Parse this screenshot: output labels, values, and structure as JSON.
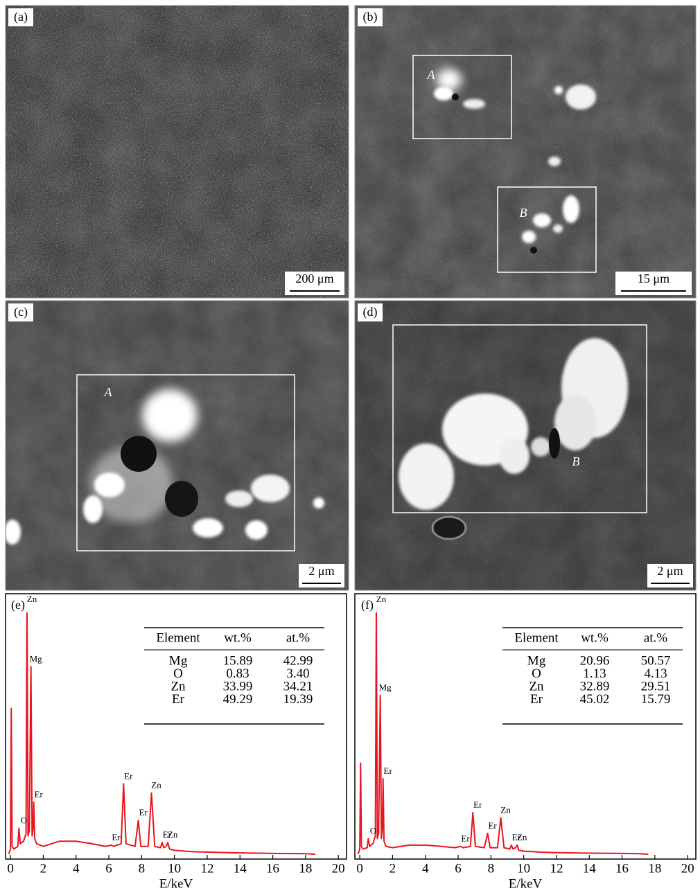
{
  "micrographs": [
    {
      "label": "(a)",
      "scale_bar": "200 μm"
    },
    {
      "label": "(b)",
      "scale_bar": "15 μm",
      "regions": [
        "A",
        "B"
      ]
    },
    {
      "label": "(c)",
      "scale_bar": "2 μm",
      "regions": [
        "A"
      ]
    },
    {
      "label": "(d)",
      "scale_bar": "2 μm",
      "regions": [
        "B"
      ]
    }
  ],
  "chart_data": [
    {
      "type": "line",
      "panel_label": "(e)",
      "xlabel": "E/keV",
      "color": "#e8141e",
      "xlim": [
        -0.3,
        20.5
      ],
      "ylim": [
        0,
        100
      ],
      "xticks": [
        0,
        2,
        4,
        6,
        8,
        10,
        12,
        14,
        16,
        18,
        20
      ],
      "x": [
        -0.1,
        0.0,
        0.05,
        0.1,
        0.2,
        0.45,
        0.52,
        0.6,
        0.8,
        0.95,
        1.01,
        1.07,
        1.15,
        1.25,
        1.32,
        1.38,
        1.42,
        1.48,
        1.6,
        2.0,
        3.0,
        4.0,
        5.0,
        5.8,
        6.15,
        6.3,
        6.75,
        6.9,
        7.05,
        7.6,
        7.8,
        7.95,
        8.4,
        8.6,
        8.8,
        9.15,
        9.25,
        9.35,
        9.5,
        9.6,
        9.7,
        10,
        11,
        12,
        14,
        16,
        18,
        18.6
      ],
      "values": [
        0,
        2,
        56,
        3,
        2,
        3,
        10,
        4,
        5,
        8,
        97,
        7,
        9,
        72,
        7,
        10,
        20,
        6,
        4,
        3,
        5,
        5,
        4,
        3,
        3.5,
        3,
        4,
        27,
        4,
        3,
        13,
        3,
        3,
        23.5,
        3,
        2.5,
        4.5,
        2.5,
        3,
        4.5,
        2,
        1.5,
        1,
        0.8,
        0.5,
        0.3,
        0.2,
        0
      ],
      "annotations": [
        {
          "text": "O",
          "x": 0.52
        },
        {
          "text": "Zn",
          "x": 1.01
        },
        {
          "text": "Mg",
          "x": 1.25
        },
        {
          "text": "Er",
          "x": 1.42
        },
        {
          "text": "Er",
          "x": 6.15
        },
        {
          "text": "Er",
          "x": 6.9
        },
        {
          "text": "Er",
          "x": 7.8
        },
        {
          "text": "Zn",
          "x": 8.6
        },
        {
          "text": "Er",
          "x": 9.25
        },
        {
          "text": "Zn",
          "x": 9.6
        }
      ],
      "table": {
        "columns": [
          "Element",
          "wt.%",
          "at.%"
        ],
        "rows": [
          [
            "Mg",
            "15.89",
            "42.99"
          ],
          [
            "O",
            "0.83",
            "3.40"
          ],
          [
            "Zn",
            "33.99",
            "34.21"
          ],
          [
            "Er",
            "49.29",
            "19.39"
          ]
        ]
      }
    },
    {
      "type": "line",
      "panel_label": "(f)",
      "xlabel": "E/keV",
      "color": "#e8141e",
      "xlim": [
        -0.3,
        20.5
      ],
      "ylim": [
        0,
        100
      ],
      "xticks": [
        0,
        2,
        4,
        6,
        8,
        10,
        12,
        14,
        16,
        18,
        20
      ],
      "x": [
        -0.1,
        0.0,
        0.05,
        0.1,
        0.2,
        0.45,
        0.52,
        0.6,
        0.8,
        0.95,
        1.01,
        1.07,
        1.15,
        1.25,
        1.32,
        1.38,
        1.42,
        1.48,
        1.6,
        2.0,
        3.0,
        4.0,
        5.0,
        5.8,
        6.15,
        6.3,
        6.75,
        6.9,
        7.05,
        7.6,
        7.8,
        7.95,
        8.4,
        8.6,
        8.8,
        9.15,
        9.25,
        9.35,
        9.5,
        9.6,
        9.7,
        10,
        11,
        12,
        14,
        16,
        17,
        17.6
      ],
      "values": [
        0,
        2,
        35,
        3,
        2,
        2.5,
        6,
        3,
        4,
        7,
        96,
        6,
        8,
        61,
        6,
        10,
        29,
        5,
        3,
        2.5,
        3.5,
        3.5,
        3,
        2.5,
        3,
        2.5,
        3,
        16,
        3,
        2.5,
        8,
        2.5,
        2.5,
        14,
        2.5,
        2,
        3.5,
        2,
        2.5,
        3.5,
        1.5,
        1.2,
        0.8,
        0.6,
        0.4,
        0.3,
        0.2,
        0
      ],
      "annotations": [
        {
          "text": "O",
          "x": 0.52
        },
        {
          "text": "Zn",
          "x": 1.01
        },
        {
          "text": "Mg",
          "x": 1.25
        },
        {
          "text": "Er",
          "x": 1.42
        },
        {
          "text": "Er",
          "x": 6.15
        },
        {
          "text": "Er",
          "x": 6.9
        },
        {
          "text": "Er",
          "x": 7.8
        },
        {
          "text": "Zn",
          "x": 8.6
        },
        {
          "text": "Er",
          "x": 9.25
        },
        {
          "text": "Zn",
          "x": 9.6
        }
      ],
      "table": {
        "columns": [
          "Element",
          "wt.%",
          "at.%"
        ],
        "rows": [
          [
            "Mg",
            "20.96",
            "50.57"
          ],
          [
            "O",
            "1.13",
            "4.13"
          ],
          [
            "Zn",
            "32.89",
            "29.51"
          ],
          [
            "Er",
            "45.02",
            "15.79"
          ]
        ]
      }
    }
  ]
}
